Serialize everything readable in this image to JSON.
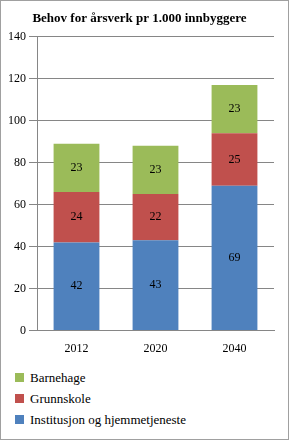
{
  "chart_data": {
    "type": "bar",
    "title": "Behov for årsverk pr 1.000 innbyggere",
    "categories": [
      "2012",
      "2020",
      "2040"
    ],
    "series": [
      {
        "name": "Institusjon og hjemmetjeneste",
        "color": "#4f81bd",
        "values": [
          42,
          43,
          69
        ]
      },
      {
        "name": "Grunnskole",
        "color": "#c0504d",
        "values": [
          24,
          22,
          25
        ]
      },
      {
        "name": "Barnehage",
        "color": "#9bbb59",
        "values": [
          23,
          23,
          23
        ]
      }
    ],
    "ylim": [
      0,
      140
    ],
    "yticks": [
      0,
      20,
      40,
      60,
      80,
      100,
      120,
      140
    ],
    "grid": true,
    "stacked": true,
    "data_labels": true,
    "legend": "bottom"
  }
}
